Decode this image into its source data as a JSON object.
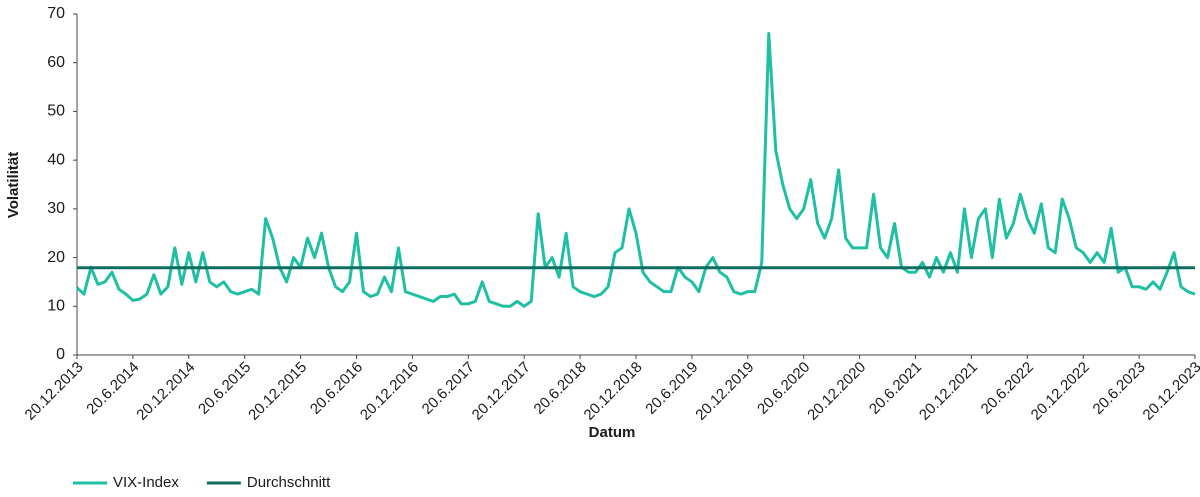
{
  "chart_data": {
    "type": "line",
    "x_label": "Datum",
    "y_label": "Volatilität",
    "categories": [
      "20.12.2013",
      null,
      null,
      null,
      null,
      null,
      null,
      null,
      "20.6.2014",
      null,
      null,
      null,
      null,
      null,
      null,
      null,
      "20.12.2014",
      null,
      null,
      null,
      null,
      null,
      null,
      null,
      "20.6.2015",
      null,
      null,
      null,
      null,
      null,
      null,
      null,
      "20.12.2015",
      null,
      null,
      null,
      null,
      null,
      null,
      null,
      "20.6.2016",
      null,
      null,
      null,
      null,
      null,
      null,
      null,
      "20.12.2016",
      null,
      null,
      null,
      null,
      null,
      null,
      null,
      "20.6.2017",
      null,
      null,
      null,
      null,
      null,
      null,
      null,
      "20.12.2017",
      null,
      null,
      null,
      null,
      null,
      null,
      null,
      "20.6.2018",
      null,
      null,
      null,
      null,
      null,
      null,
      null,
      "20.12.2018",
      null,
      null,
      null,
      null,
      null,
      null,
      null,
      "20.6.2019",
      null,
      null,
      null,
      null,
      null,
      null,
      null,
      "20.12.2019",
      null,
      null,
      null,
      null,
      null,
      null,
      null,
      "20.6.2020",
      null,
      null,
      null,
      null,
      null,
      null,
      null,
      "20.12.2020",
      null,
      null,
      null,
      null,
      null,
      null,
      null,
      "20.6.2021",
      null,
      null,
      null,
      null,
      null,
      null,
      null,
      "20.12.2021",
      null,
      null,
      null,
      null,
      null,
      null,
      null,
      "20.6.2022",
      null,
      null,
      null,
      null,
      null,
      null,
      null,
      "20.12.2022",
      null,
      null,
      null,
      null,
      null,
      null,
      null,
      "20.6.2023",
      null,
      null,
      null,
      null,
      null,
      null,
      null,
      "20.12.2023"
    ],
    "series": [
      {
        "name": "VIX-Index",
        "color": "#1fbfa3",
        "values": [
          13.8,
          12.5,
          18,
          14.5,
          15,
          17,
          13.5,
          12.5,
          11.2,
          11.5,
          12.5,
          16.5,
          12.5,
          14,
          22,
          14.5,
          21,
          15,
          21,
          15,
          14,
          15,
          13,
          12.5,
          13,
          13.5,
          12.5,
          28,
          24,
          18,
          15,
          20,
          18,
          24,
          20,
          25,
          18,
          14,
          13,
          15,
          25,
          13,
          12,
          12.5,
          16,
          13,
          22,
          13,
          12.5,
          12,
          11.5,
          11,
          12,
          12,
          12.5,
          10.5,
          10.5,
          11,
          15,
          11,
          10.5,
          10,
          10,
          11,
          10,
          11,
          29,
          18,
          20,
          16,
          25,
          14,
          13,
          12.5,
          12,
          12.5,
          14,
          21,
          22,
          30,
          25,
          17,
          15,
          14,
          13,
          13,
          18,
          16,
          15,
          13,
          18,
          20,
          17,
          16,
          13,
          12.5,
          13,
          13,
          19,
          66,
          42,
          35,
          30,
          28,
          30,
          36,
          27,
          24,
          28,
          38,
          24,
          22,
          22,
          22,
          33,
          22,
          20,
          27,
          18,
          17,
          17,
          19,
          16,
          20,
          17,
          21,
          17,
          30,
          20,
          28,
          30,
          20,
          32,
          24,
          27,
          33,
          28,
          25,
          31,
          22,
          21,
          32,
          28,
          22,
          21,
          19,
          21,
          19,
          26,
          17,
          18,
          14,
          14,
          13.5,
          15,
          13.5,
          17,
          21,
          14,
          13,
          12.5
        ]
      }
    ],
    "reference_lines": [
      {
        "name": "Durchschnitt",
        "color": "#0e6e5f",
        "value": 17.9
      }
    ],
    "ylim": [
      0,
      70
    ],
    "yticks": [
      0,
      10,
      20,
      30,
      40,
      50,
      60,
      70
    ],
    "legend": "bottom-left"
  }
}
